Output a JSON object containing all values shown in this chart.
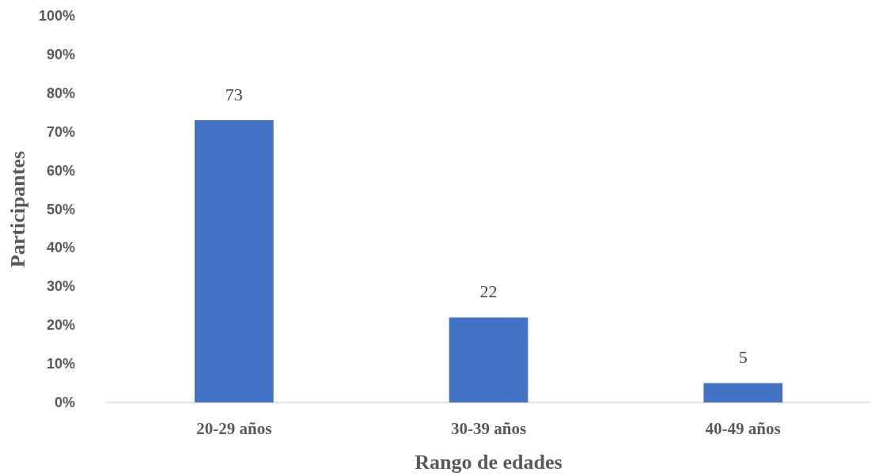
{
  "chart_data": {
    "type": "bar",
    "xlabel": "Rango de edades",
    "ylabel": "Participantes",
    "categories": [
      "20-29 años",
      "30-39 años",
      "40-49 años"
    ],
    "values": [
      73,
      22,
      5
    ],
    "color": "#4472c4",
    "data_labels": true,
    "ylim": [
      0,
      100
    ],
    "yticks": [
      {
        "value": 0,
        "label": "0%"
      },
      {
        "value": 10,
        "label": "10%"
      },
      {
        "value": 20,
        "label": "20%"
      },
      {
        "value": 30,
        "label": "30%"
      },
      {
        "value": 40,
        "label": "40%"
      },
      {
        "value": 50,
        "label": "50%"
      },
      {
        "value": 60,
        "label": "60%"
      },
      {
        "value": 70,
        "label": "70%"
      },
      {
        "value": 80,
        "label": "80%"
      },
      {
        "value": 90,
        "label": "90%"
      },
      {
        "value": 100,
        "label": "100%"
      }
    ],
    "grid": false
  }
}
